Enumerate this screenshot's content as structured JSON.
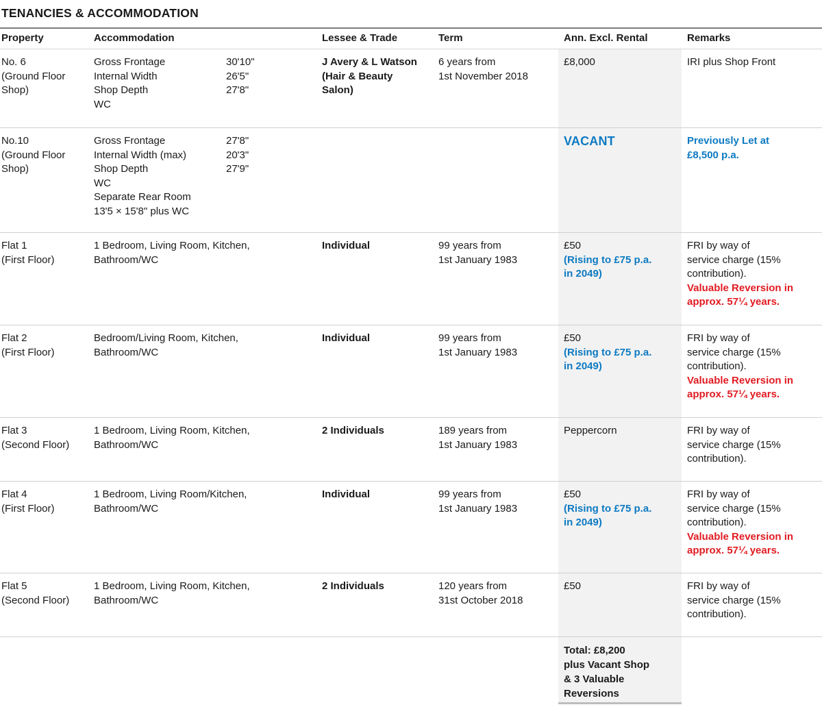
{
  "title": "TENANCIES & ACCOMMODATION",
  "columns": [
    "Property",
    "Accommodation",
    "Lessee & Trade",
    "Term",
    "Ann. Excl. Rental",
    "Remarks"
  ],
  "colors": {
    "accent_blue": "#0d7ac2",
    "alert_red": "#e11b22",
    "rental_column_bg": "#f2f2f2",
    "text": "#1a1a1a"
  },
  "rows": [
    {
      "property_lines": [
        "No. 6",
        "(Ground Floor Shop)"
      ],
      "accommodation": {
        "items": [
          {
            "label": "Gross Frontage",
            "value": "30'10\""
          },
          {
            "label": "Internal Width",
            "value": "26'5\""
          },
          {
            "label": "Shop Depth",
            "value": "27'8\""
          },
          {
            "label": "WC",
            "value": ""
          }
        ]
      },
      "lessee_lines": [
        "J Avery & L Watson",
        "(Hair & Beauty",
        "Salon)"
      ],
      "term_lines": [
        "6 years from",
        "1st November 2018"
      ],
      "rental": {
        "amount": "£8,000"
      },
      "remarks": {
        "text_lines": [
          "IRI plus Shop Front"
        ]
      }
    },
    {
      "property_lines": [
        "No.10",
        "(Ground Floor Shop)"
      ],
      "accommodation": {
        "items": [
          {
            "label": "Gross Frontage",
            "value": "27'8\""
          },
          {
            "label": "Internal Width (max)",
            "value": "20'3\""
          },
          {
            "label": "Shop Depth",
            "value": "27'9\""
          },
          {
            "label": "WC",
            "value": ""
          },
          {
            "label": "Separate Rear Room",
            "value": ""
          },
          {
            "label": "13'5 × 15'8\" plus WC",
            "value": ""
          }
        ]
      },
      "lessee_lines": [],
      "term_lines": [],
      "rental": {
        "vacant": "VACANT"
      },
      "remarks": {
        "highlight_lines": [
          "Previously Let at",
          "£8,500 p.a."
        ]
      }
    },
    {
      "property_lines": [
        "Flat 1",
        "(First Floor)"
      ],
      "accommodation": {
        "lines": [
          "1 Bedroom, Living Room, Kitchen,",
          "Bathroom/WC"
        ]
      },
      "lessee_lines": [
        "Individual"
      ],
      "term_lines": [
        "99 years from",
        "1st January 1983"
      ],
      "rental": {
        "amount": "£50",
        "note_lines": [
          "(Rising to £75 p.a.",
          "in 2049)"
        ]
      },
      "remarks": {
        "text_lines": [
          "FRI by way of",
          "service charge (15%",
          "contribution)."
        ],
        "alert_lines": [
          "Valuable Reversion in",
          "approx. 57¼ years."
        ]
      }
    },
    {
      "property_lines": [
        "Flat 2",
        "(First Floor)"
      ],
      "accommodation": {
        "lines": [
          "Bedroom/Living Room, Kitchen,",
          "Bathroom/WC"
        ]
      },
      "lessee_lines": [
        "Individual"
      ],
      "term_lines": [
        "99 years from",
        "1st January 1983"
      ],
      "rental": {
        "amount": "£50",
        "note_lines": [
          "(Rising to £75 p.a.",
          "in 2049)"
        ]
      },
      "remarks": {
        "text_lines": [
          "FRI by way of",
          "service charge (15%",
          "contribution)."
        ],
        "alert_lines": [
          "Valuable Reversion in",
          "approx. 57¼ years."
        ]
      }
    },
    {
      "property_lines": [
        "Flat 3",
        "(Second Floor)"
      ],
      "accommodation": {
        "lines": [
          "1 Bedroom, Living Room, Kitchen,",
          "Bathroom/WC"
        ]
      },
      "lessee_lines": [
        "2 Individuals"
      ],
      "term_lines": [
        "189 years from",
        "1st January 1983"
      ],
      "rental": {
        "amount": "Peppercorn"
      },
      "remarks": {
        "text_lines": [
          "FRI by way of",
          "service charge (15%",
          "contribution)."
        ]
      }
    },
    {
      "property_lines": [
        "Flat 4",
        "(First Floor)"
      ],
      "accommodation": {
        "lines": [
          "1 Bedroom, Living Room/Kitchen,",
          "Bathroom/WC"
        ]
      },
      "lessee_lines": [
        "Individual"
      ],
      "term_lines": [
        "99 years from",
        "1st January 1983"
      ],
      "rental": {
        "amount": "£50",
        "note_lines": [
          "(Rising to £75 p.a.",
          "in 2049)"
        ]
      },
      "remarks": {
        "text_lines": [
          "FRI by way of",
          "service charge (15%",
          "contribution)."
        ],
        "alert_lines": [
          "Valuable Reversion in",
          "approx. 57¼ years."
        ]
      }
    },
    {
      "property_lines": [
        "Flat 5",
        "(Second Floor)"
      ],
      "accommodation": {
        "lines": [
          "1 Bedroom, Living Room, Kitchen,",
          "Bathroom/WC"
        ]
      },
      "lessee_lines": [
        "2 Individuals"
      ],
      "term_lines": [
        "120 years from",
        "31st October 2018"
      ],
      "rental": {
        "amount": "£50"
      },
      "remarks": {
        "text_lines": [
          "FRI by way of",
          "service charge (15%",
          "contribution)."
        ]
      }
    }
  ],
  "total": {
    "lines": [
      "Total: £8,200",
      "plus Vacant Shop",
      "& 3 Valuable",
      "Reversions"
    ]
  }
}
